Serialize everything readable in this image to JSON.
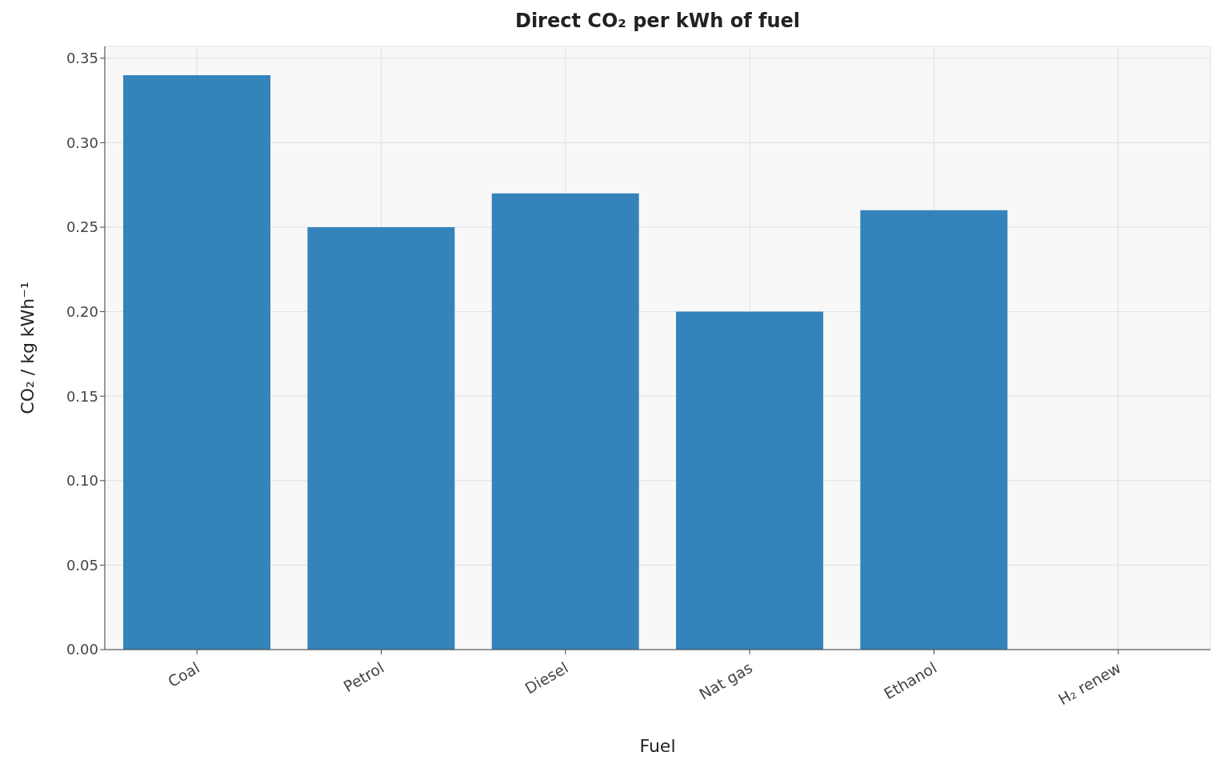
{
  "chart_data": {
    "type": "bar",
    "title": "Direct CO₂ per kWh of fuel",
    "xlabel": "Fuel",
    "ylabel": "CO₂ / kg kWh⁻¹",
    "categories": [
      "Coal",
      "Petrol",
      "Diesel",
      "Nat gas",
      "Ethanol",
      "H₂ renew"
    ],
    "values": [
      0.34,
      0.25,
      0.27,
      0.2,
      0.26,
      0
    ],
    "color": "#3583bb",
    "ylim": [
      0,
      0.357
    ],
    "yticks": [
      {
        "value": 0,
        "label": "0.00"
      },
      0.05,
      {
        "value": 0.1,
        "label": "0.10"
      },
      0.15,
      {
        "value": 0.2,
        "label": "0.20"
      },
      0.25,
      {
        "value": 0.3,
        "label": "0.30"
      },
      0.35
    ],
    "grid": true
  }
}
